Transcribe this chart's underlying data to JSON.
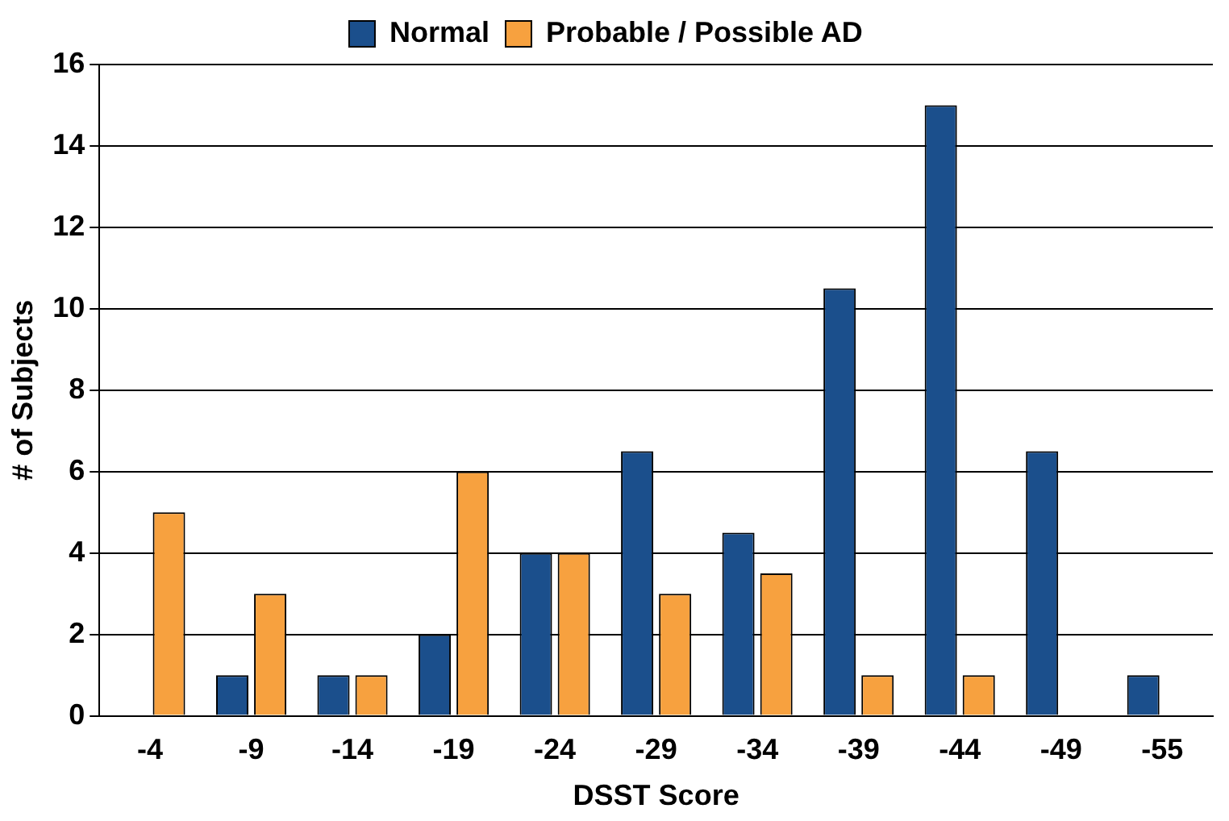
{
  "chart_data": {
    "type": "bar",
    "xlabel": "DSST Score",
    "ylabel": "# of Subjects",
    "categories": [
      "-4",
      "-9",
      "-14",
      "-19",
      "-24",
      "-29",
      "-34",
      "-39",
      "-44",
      "-49",
      "-55"
    ],
    "series": [
      {
        "name": "Normal",
        "color": "#1b4f8c",
        "values": [
          0,
          1,
          1,
          2,
          4,
          6.5,
          4.5,
          10.5,
          15,
          6.5,
          1
        ]
      },
      {
        "name": "Probable / Possible AD",
        "color": "#f7a13f",
        "values": [
          5,
          3,
          1,
          6,
          4,
          3,
          3.5,
          1,
          1,
          0,
          0
        ]
      }
    ],
    "ylim": [
      0,
      16
    ],
    "yticks": [
      0,
      2,
      4,
      6,
      8,
      10,
      12,
      14,
      16
    ],
    "grid": "y",
    "legend": "top"
  }
}
